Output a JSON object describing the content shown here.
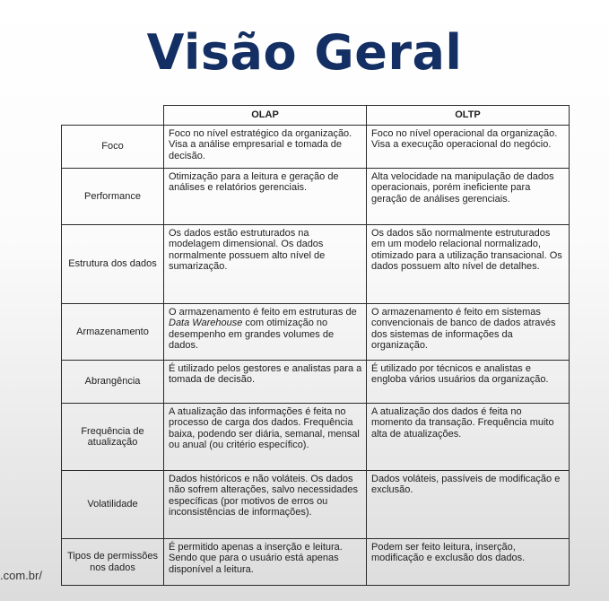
{
  "title": "Visão Geral",
  "table": {
    "headers": [
      "OLAP",
      "OLTP"
    ],
    "rows": [
      {
        "label": "Foco",
        "olap": "Foco no nível estratégico da organização. Visa a análise empresarial e tomada de decisão.",
        "oltp": "Foco no nível operacional da organização. Visa a execução operacional do negócio."
      },
      {
        "label": "Performance",
        "olap": "Otimização para a leitura e geração de análises e relatórios gerenciais.",
        "oltp": "Alta velocidade na manipulação de dados operacionais, porém ineficiente para geração de análises gerenciais."
      },
      {
        "label": "Estrutura dos dados",
        "olap": "Os dados estão estruturados na modelagem dimensional. Os dados normalmente possuem alto nível de sumarização.",
        "oltp": "Os dados são normalmente estruturados em um modelo relacional normalizado, otimizado para a utilização transacional. Os dados possuem alto nível de detalhes."
      },
      {
        "label": "Armazenamento",
        "olap_before": "O armazenamento é feito em estruturas de ",
        "olap_em": "Data Warehouse",
        "olap_after": " com otimização no desempenho em grandes volumes de dados.",
        "oltp": "O armazenamento é feito em sistemas convencionais de banco de dados através dos sistemas de informações da organização."
      },
      {
        "label": "Abrangência",
        "olap": "É utilizado pelos gestores e analistas para a tomada de decisão.",
        "oltp": "É utilizado por técnicos e analistas e engloba vários usuários da organização."
      },
      {
        "label": "Frequência de atualização",
        "olap": "A atualização das informações é feita no processo de carga dos dados. Frequência baixa, podendo ser diária, semanal, mensal ou anual (ou critério específico).",
        "oltp": "A atualização dos dados é feita no momento da transação. Frequência muito alta de atualizações."
      },
      {
        "label": "Volatilidade",
        "olap": "Dados históricos e não voláteis. Os dados não sofrem alterações, salvo necessidades específicas (por motivos de erros ou inconsistências de informações).",
        "oltp": "Dados voláteis, passíveis de modificação e exclusão."
      },
      {
        "label": "Tipos de permissões nos dados",
        "olap": "É permitido apenas a inserção e leitura. Sendo que para o usuário está apenas disponível a leitura.",
        "oltp": "Podem ser feito leitura, inserção, modificação e exclusão dos dados."
      }
    ]
  },
  "site_fragment": ".com.br/"
}
